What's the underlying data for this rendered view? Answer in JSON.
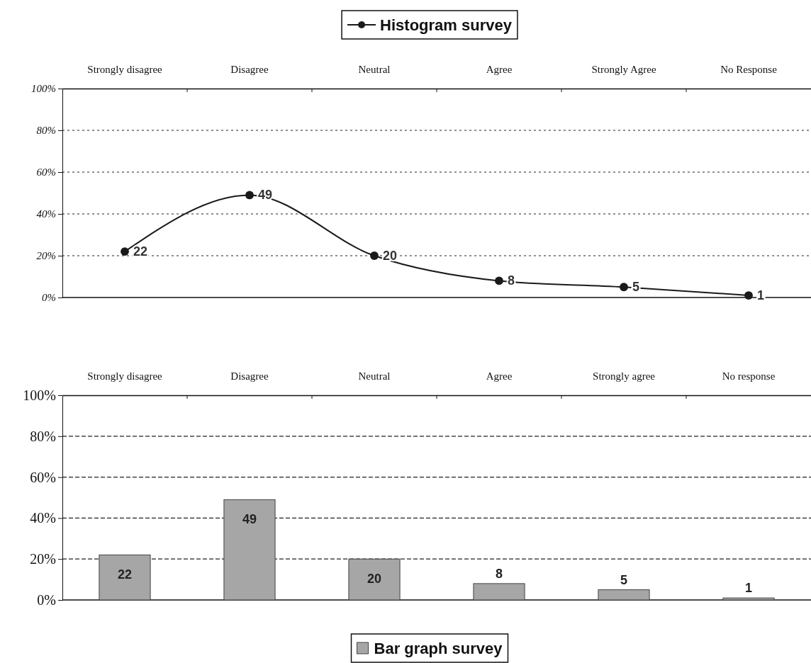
{
  "chart_data": [
    {
      "type": "line",
      "categories": [
        "Strongly disagree",
        "Disagree",
        "Neutral",
        "Agree",
        "Strongly Agree",
        "No Response"
      ],
      "series": [
        {
          "name": "Histogram survey",
          "color": "#1a1a1a",
          "values": [
            22,
            49,
            20,
            8,
            5,
            1
          ]
        }
      ],
      "ylim": [
        0,
        100
      ],
      "yticks": [
        {
          "value": 0,
          "label": "0%"
        },
        {
          "value": 20,
          "label": "20%"
        },
        {
          "value": 40,
          "label": "40%"
        },
        {
          "value": 60,
          "label": "60%"
        },
        {
          "value": 80,
          "label": "80%"
        },
        {
          "value": 100,
          "label": "100%"
        }
      ],
      "grid": "y",
      "legend": "top",
      "marker": "circle",
      "line_style": "solid",
      "data_labels": true
    },
    {
      "type": "bar",
      "categories": [
        "Strongly disagree",
        "Disagree",
        "Neutral",
        "Agree",
        "Strongly agree",
        "No response"
      ],
      "series": [
        {
          "name": "Bar graph survey",
          "color": "#a6a6a6",
          "values": [
            22,
            49,
            20,
            8,
            5,
            1
          ]
        }
      ],
      "ylim": [
        0,
        100
      ],
      "yticks": [
        {
          "value": 0,
          "label": "0%"
        },
        {
          "value": 20,
          "label": "20%"
        },
        {
          "value": 40,
          "label": "40%"
        },
        {
          "value": 60,
          "label": "60%"
        },
        {
          "value": 80,
          "label": "80%"
        },
        {
          "value": 100,
          "label": "100%"
        }
      ],
      "grid": "y",
      "legend": "bottom",
      "data_labels": true
    }
  ]
}
